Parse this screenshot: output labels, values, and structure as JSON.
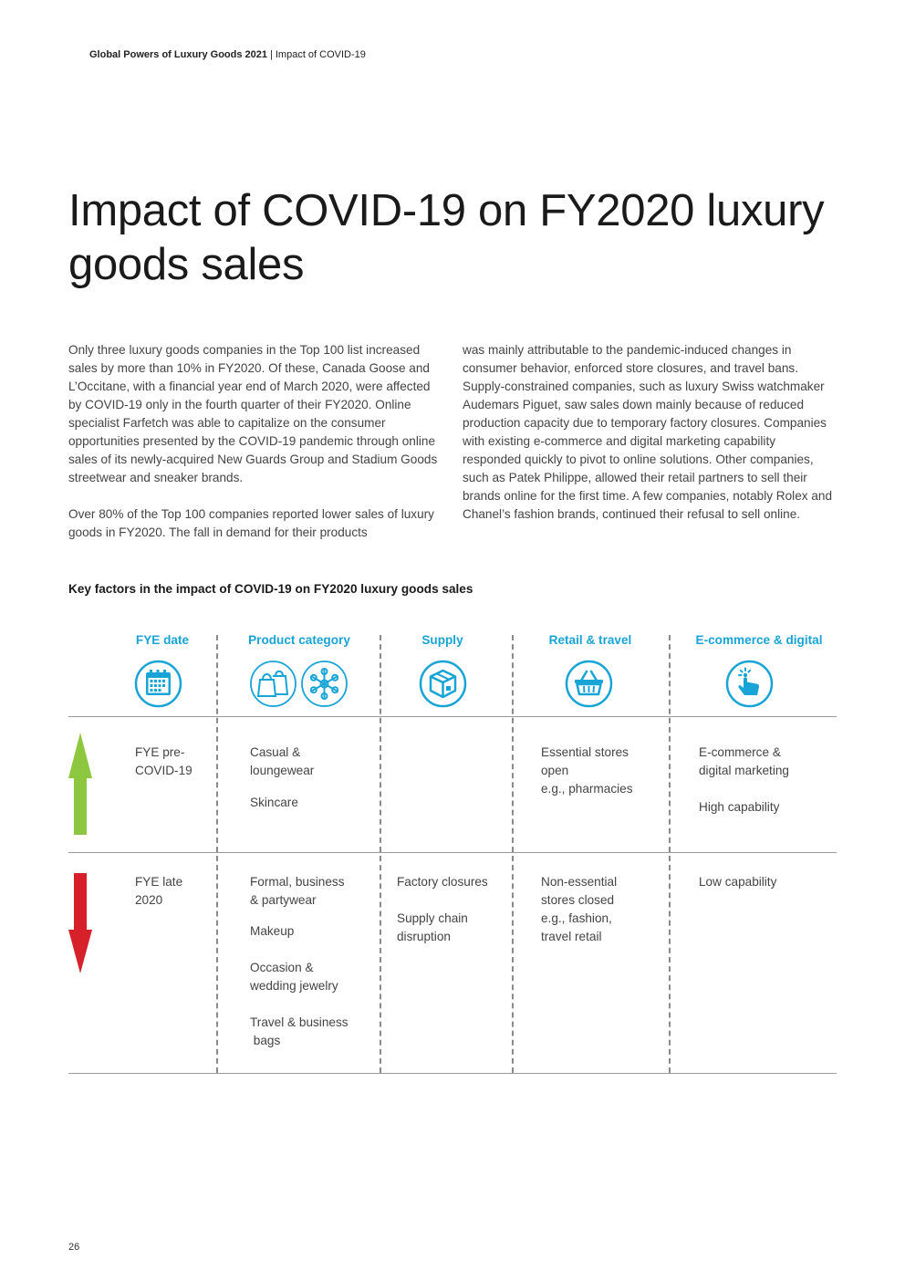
{
  "header": {
    "publication": "Global Powers of Luxury Goods 2021",
    "separator": "|",
    "section": "Impact of COVID-19"
  },
  "title": "Impact of COVID-19 on FY2020 luxury goods sales",
  "body": {
    "left_paragraphs": [
      "Only three luxury goods companies in the Top 100 list increased sales by more than 10% in FY2020. Of these, Canada Goose and L’Occitane, with a financial year end of March 2020, were affected by COVID-19 only in the fourth quarter of their FY2020. Online specialist Farfetch was able to capitalize on the consumer opportunities presented by the COVID-19 pandemic through online sales of its newly-acquired New Guards Group and Stadium Goods streetwear and sneaker brands.",
      "Over 80% of the Top 100 companies reported lower sales of luxury goods in FY2020. The fall in demand for their products"
    ],
    "right_paragraphs": [
      "was mainly attributable to the pandemic-induced changes in consumer behavior, enforced store closures, and travel bans. Supply-constrained companies, such as luxury Swiss watchmaker Audemars Piguet, saw sales down mainly because of reduced production capacity due to temporary factory closures. Companies with existing e-commerce and digital marketing capability responded quickly to pivot to online solutions. Other companies, such as Patek Philippe, allowed their retail partners to sell their brands online for the first time. A few companies, notably Rolex and Chanel’s fashion brands, continued their refusal to sell online."
    ]
  },
  "factors_table": {
    "title": "Key factors in the impact of COVID-19 on FY2020 luxury goods sales",
    "columns": [
      {
        "label": "FYE date",
        "icons": [
          "calendar-icon"
        ]
      },
      {
        "label": "Product category",
        "icons": [
          "shopping-bags-icon",
          "snowflake-icon"
        ]
      },
      {
        "label": "Supply",
        "icons": [
          "package-box-icon"
        ]
      },
      {
        "label": "Retail & travel",
        "icons": [
          "shopping-basket-icon"
        ]
      },
      {
        "label": "E-commerce & digital",
        "icons": [
          "touch-hand-icon"
        ]
      }
    ],
    "rows": [
      {
        "indicator": "up-arrow-icon",
        "indicator_color": "#8dc63f",
        "fye": [
          "FYE pre-",
          "COVID-19"
        ],
        "product": [
          [
            "Casual &",
            "loungewear"
          ],
          [
            "Skincare"
          ]
        ],
        "supply": [],
        "retail": [
          [
            "Essential stores",
            "open",
            "e.g., pharmacies"
          ]
        ],
        "ecommerce": [
          [
            "E-commerce &",
            "digital marketing"
          ],
          [
            "High capability"
          ]
        ]
      },
      {
        "indicator": "down-arrow-icon",
        "indicator_color": "#d6212a",
        "fye": [
          "FYE late",
          "2020"
        ],
        "product": [
          [
            "Formal, business",
            "& partywear"
          ],
          [
            "Makeup"
          ],
          [
            "Occasion &",
            "wedding jewelry"
          ],
          [
            "Travel & business",
            " bags"
          ]
        ],
        "supply": [
          [
            "Factory closures"
          ],
          [
            "Supply chain",
            "disruption"
          ]
        ],
        "retail": [
          [
            "Non-essential",
            "stores closed",
            "e.g., fashion,",
            "travel retail"
          ]
        ],
        "ecommerce": [
          [
            "Low capability"
          ]
        ]
      }
    ]
  },
  "colors": {
    "accent": "#19a4d7",
    "up": "#8dc63f",
    "down": "#d6212a"
  },
  "page_number": "26"
}
